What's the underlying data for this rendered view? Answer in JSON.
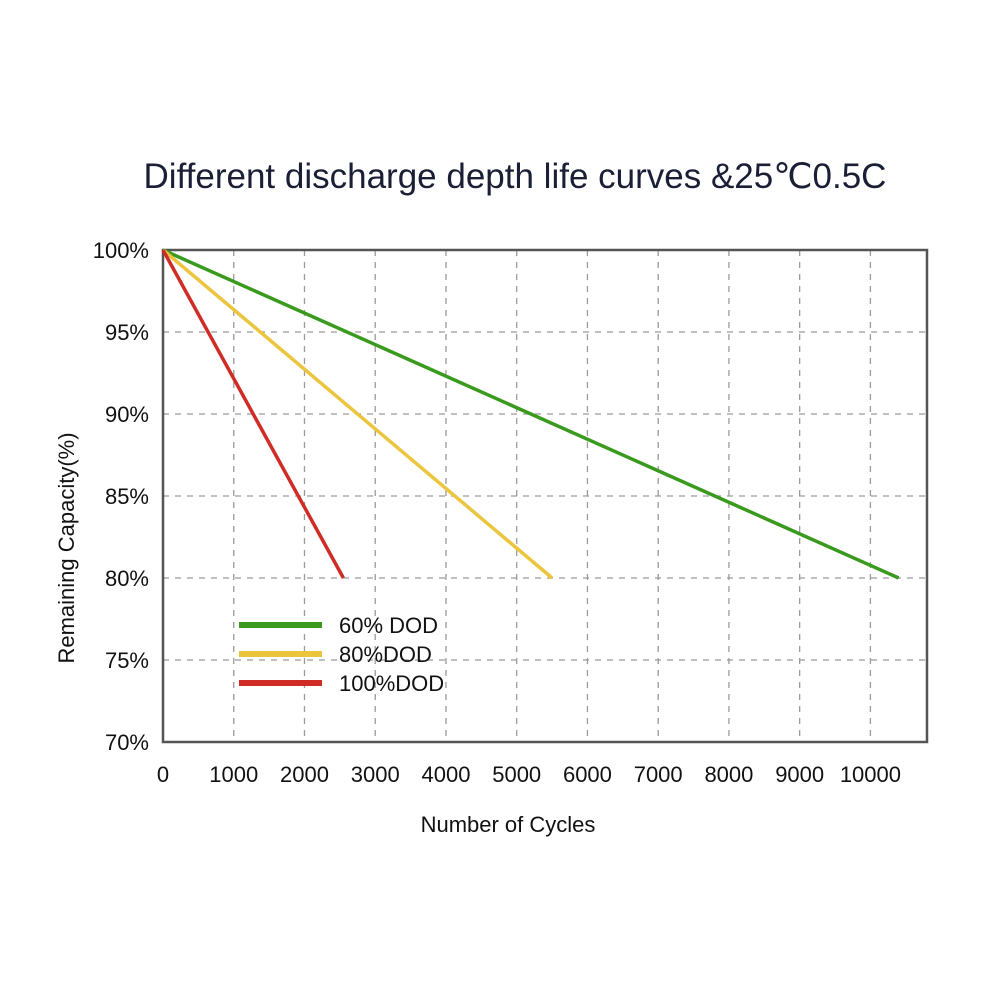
{
  "chart_data": {
    "type": "line",
    "title": "Different discharge depth life curves &25℃0.5C",
    "xlabel": "Number of Cycles",
    "ylabel": "Remaining Capacity(%)",
    "xlim": [
      0,
      10800
    ],
    "ylim": [
      70,
      100
    ],
    "x_ticks": [
      "0",
      "1000",
      "2000",
      "3000",
      "4000",
      "5000",
      "6000",
      "7000",
      "8000",
      "9000",
      "10000"
    ],
    "x_tick_values": [
      0,
      1000,
      2000,
      3000,
      4000,
      5000,
      6000,
      7000,
      8000,
      9000,
      10000
    ],
    "y_ticks": [
      "100%",
      "95%",
      "90%",
      "85%",
      "80%",
      "75%",
      "70%"
    ],
    "y_tick_values": [
      100,
      95,
      90,
      85,
      80,
      75,
      70
    ],
    "grid": true,
    "legend_position": "bottom-left",
    "series": [
      {
        "name": "60% DOD",
        "color": "#3a9a1e",
        "x": [
          0,
          10400
        ],
        "y": [
          100,
          80
        ]
      },
      {
        "name": "80%DOD",
        "color": "#ecc53f",
        "x": [
          0,
          5500
        ],
        "y": [
          100,
          80
        ]
      },
      {
        "name": "100%DOD",
        "color": "#d02c26",
        "x": [
          0,
          2550
        ],
        "y": [
          100,
          80
        ]
      }
    ]
  }
}
